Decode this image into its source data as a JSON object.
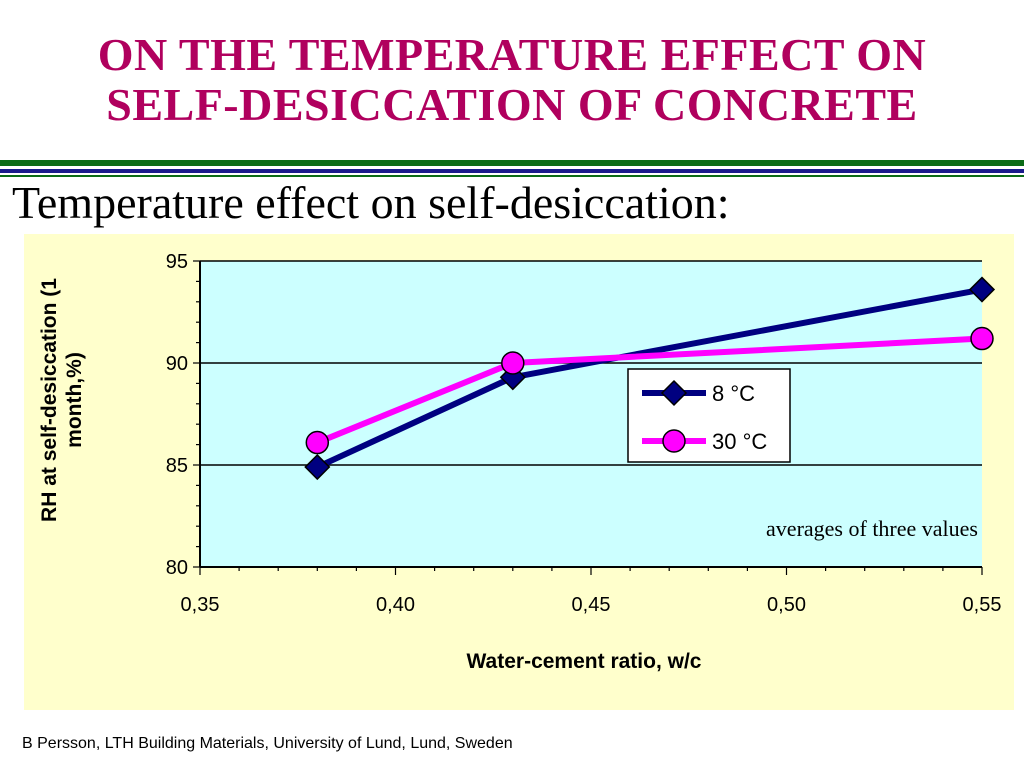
{
  "slide": {
    "title_line1": "ON THE TEMPERATURE EFFECT ON",
    "title_line2": "SELF-DESICCATION OF CONCRETE",
    "subtitle": "Temperature effect on self-desiccation:",
    "footer": "B Persson, LTH Building Materials, University of Lund, Lund, Sweden"
  },
  "chart_data": {
    "type": "line",
    "title": "",
    "xlabel": "Water-cement ratio, w/c",
    "ylabel_line1": "RH at self-desiccation (1",
    "ylabel_line2": "month,%)",
    "xlim": [
      0.35,
      0.55
    ],
    "ylim": [
      80,
      95
    ],
    "x_ticks": [
      0.35,
      0.4,
      0.45,
      0.5,
      0.55
    ],
    "x_tick_labels": [
      "0,35",
      "0,40",
      "0,45",
      "0,50",
      "0,55"
    ],
    "y_ticks": [
      80,
      85,
      90,
      95
    ],
    "y_tick_labels": [
      "80",
      "85",
      "90",
      "95"
    ],
    "grid": "horizontal major",
    "legend_position": "center-right",
    "annotation": "averages of three values",
    "series": [
      {
        "name": "8 °C",
        "color": "#000080",
        "marker": "diamond",
        "points": [
          [
            0.38,
            84.9
          ],
          [
            0.43,
            89.3
          ],
          [
            0.55,
            93.6
          ]
        ]
      },
      {
        "name": "30 °C",
        "color": "#ff00ff",
        "marker": "circle",
        "points": [
          [
            0.38,
            86.1
          ],
          [
            0.43,
            90.0
          ],
          [
            0.55,
            91.2
          ]
        ]
      }
    ],
    "colors": {
      "plot_bg": "#ccffff",
      "panel_bg": "#ffffcc"
    }
  }
}
